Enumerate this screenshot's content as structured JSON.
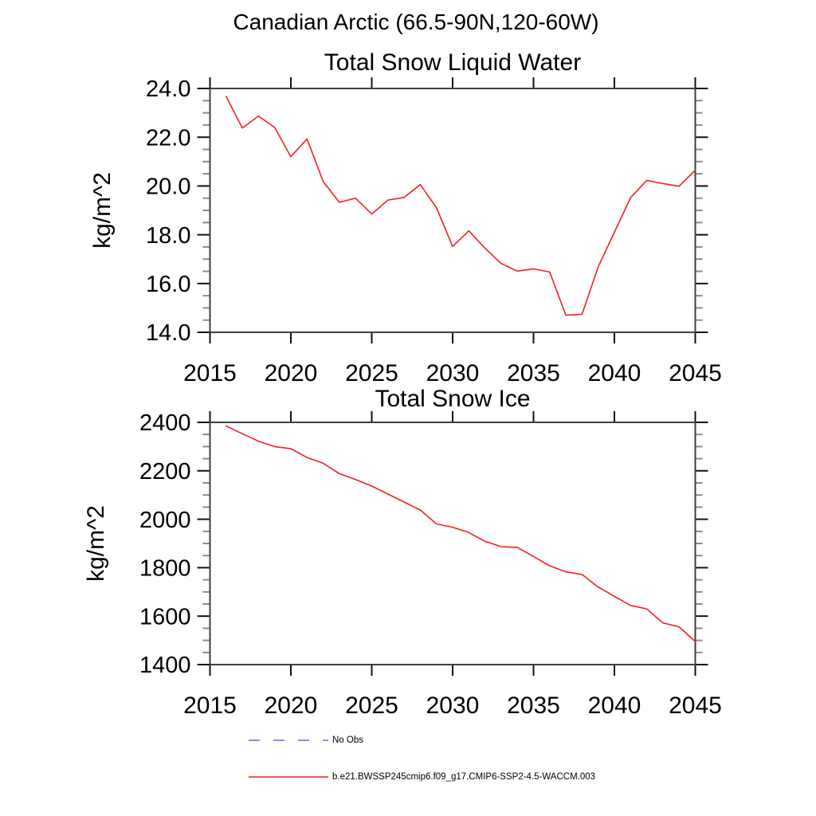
{
  "page_title": "Canadian Arctic (66.5-90N,120-60W)",
  "colors": {
    "series": "#f51f1f",
    "no_obs": "#6565dd",
    "axis_border": "#3f3f3f",
    "tick_major": "#111111",
    "tick_minor": "#8a8a8a",
    "text": "#000000"
  },
  "legend": [
    {
      "label": "No Obs",
      "style": "dashed",
      "color_key": "no_obs"
    },
    {
      "label": "b.e21.BWSSP245cmip6.f09_g17.CMIP6-SSP2-4.5-WACCM.003",
      "style": "solid",
      "color_key": "series"
    }
  ],
  "chart_data": [
    {
      "type": "line",
      "title": "Total Snow Liquid Water",
      "xlabel": "",
      "ylabel": "kg/m^2",
      "grid": false,
      "legend_position": "below-plots-left",
      "xlim": [
        2015,
        2045
      ],
      "ylim": [
        14.0,
        24.0
      ],
      "xticks": [
        2015,
        2020,
        2025,
        2030,
        2035,
        2040,
        2045
      ],
      "xtick_labels": [
        "2015",
        "2020",
        "2025",
        "2030",
        "2035",
        "2040",
        "2045"
      ],
      "yticks": [
        14.0,
        16.0,
        18.0,
        20.0,
        22.0,
        24.0
      ],
      "ytick_labels": [
        "14.0",
        "16.0",
        "18.0",
        "20.0",
        "22.0",
        "24.0"
      ],
      "yminor_step": 0.5,
      "x": [
        2016,
        2017,
        2018,
        2019,
        2020,
        2021,
        2022,
        2023,
        2024,
        2025,
        2026,
        2027,
        2028,
        2029,
        2030,
        2031,
        2032,
        2033,
        2034,
        2035,
        2036,
        2037,
        2038,
        2039,
        2040,
        2041,
        2042,
        2043,
        2044,
        2045
      ],
      "series": [
        {
          "name": "b.e21.BWSSP245cmip6.f09_g17.CMIP6-SSP2-4.5-WACCM.003",
          "color_key": "series",
          "values": [
            23.67,
            22.38,
            22.87,
            22.4,
            21.2,
            21.93,
            20.18,
            19.33,
            19.5,
            18.85,
            19.42,
            19.53,
            20.06,
            19.11,
            17.52,
            18.16,
            17.45,
            16.82,
            16.51,
            16.6,
            16.47,
            14.7,
            14.74,
            16.69,
            18.1,
            19.52,
            20.23,
            20.1,
            19.99,
            20.65
          ]
        }
      ]
    },
    {
      "type": "line",
      "title": "Total Snow Ice",
      "xlabel": "",
      "ylabel": "kg/m^2",
      "grid": false,
      "legend_position": "below-plots-left",
      "xlim": [
        2015,
        2045
      ],
      "ylim": [
        1400,
        2400
      ],
      "xticks": [
        2015,
        2020,
        2025,
        2030,
        2035,
        2040,
        2045
      ],
      "xtick_labels": [
        "2015",
        "2020",
        "2025",
        "2030",
        "2035",
        "2040",
        "2045"
      ],
      "yticks": [
        1400,
        1600,
        1800,
        2000,
        2200,
        2400
      ],
      "ytick_labels": [
        "1400",
        "1600",
        "1800",
        "2000",
        "2200",
        "2400"
      ],
      "yminor_step": 50,
      "x": [
        2016,
        2017,
        2018,
        2019,
        2020,
        2021,
        2022,
        2023,
        2024,
        2025,
        2026,
        2027,
        2028,
        2029,
        2030,
        2031,
        2032,
        2033,
        2034,
        2035,
        2036,
        2037,
        2038,
        2039,
        2040,
        2041,
        2042,
        2043,
        2044,
        2045
      ],
      "series": [
        {
          "name": "b.e21.BWSSP245cmip6.f09_g17.CMIP6-SSP2-4.5-WACCM.003",
          "color_key": "series",
          "values": [
            2385,
            2353,
            2322,
            2300,
            2291,
            2255,
            2231,
            2188,
            2164,
            2137,
            2104,
            2071,
            2038,
            1981,
            1967,
            1945,
            1909,
            1887,
            1884,
            1846,
            1808,
            1783,
            1772,
            1720,
            1682,
            1644,
            1630,
            1572,
            1556,
            1495
          ]
        }
      ]
    }
  ]
}
